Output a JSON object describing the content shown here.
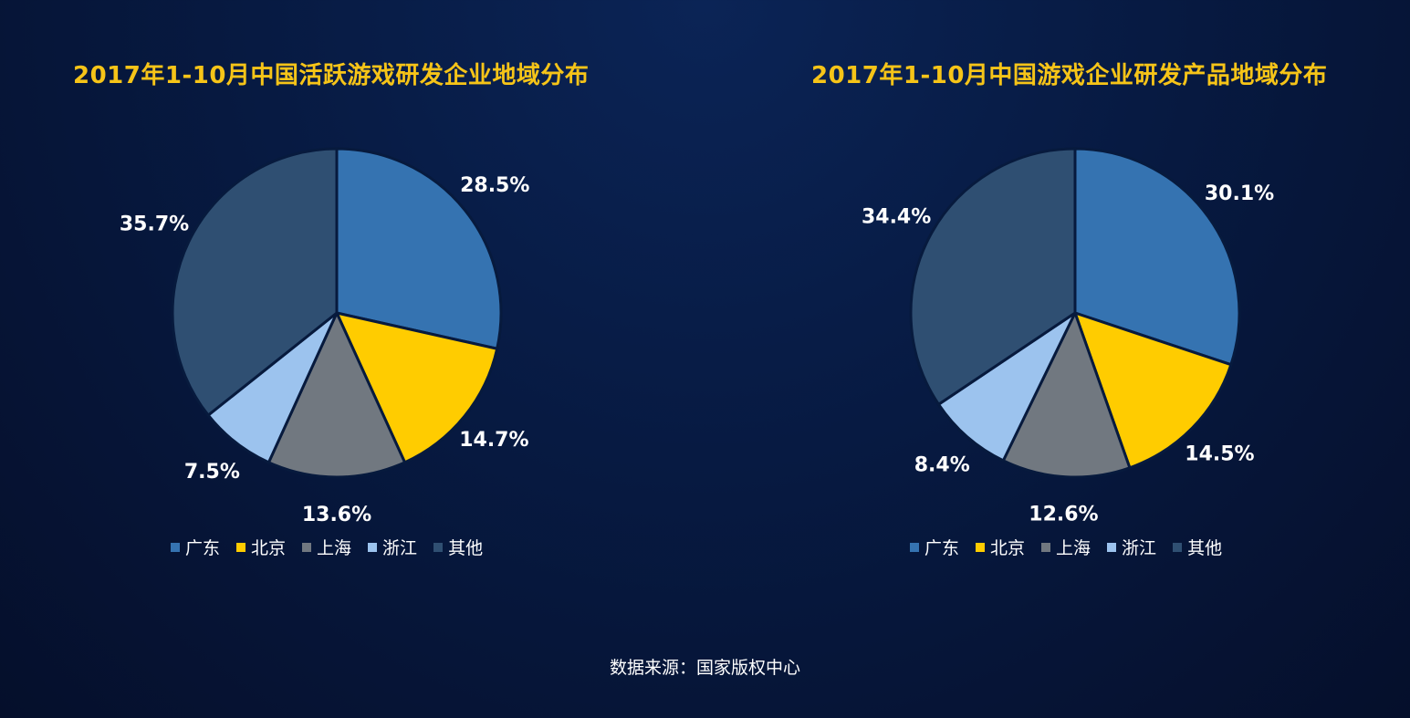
{
  "colors": {
    "广东": "#3573b1",
    "北京": "#ffcc00",
    "上海": "#717880",
    "浙江": "#9cc3ee",
    "其他": "#2f4f72",
    "title": "#f6c418",
    "stroke": "#071a3d"
  },
  "legend_labels": [
    "广东",
    "北京",
    "上海",
    "浙江",
    "其他"
  ],
  "source": "数据来源：国家版权中心",
  "chart_data": [
    {
      "type": "pie",
      "title": "2017年1-10月中国活跃游戏研发企业地域分布",
      "categories": [
        "广东",
        "北京",
        "上海",
        "浙江",
        "其他"
      ],
      "values": [
        28.5,
        14.7,
        13.6,
        7.5,
        35.7
      ],
      "labels": [
        "28.5%",
        "14.7%",
        "13.6%",
        "7.5%",
        "35.7%"
      ],
      "legend_position": "bottom"
    },
    {
      "type": "pie",
      "title": "2017年1-10月中国游戏企业研发产品地域分布",
      "categories": [
        "广东",
        "北京",
        "上海",
        "浙江",
        "其他"
      ],
      "values": [
        30.1,
        14.5,
        12.6,
        8.4,
        34.4
      ],
      "labels": [
        "30.1%",
        "14.5%",
        "12.6%",
        "8.4%",
        "34.4%"
      ],
      "legend_position": "bottom"
    }
  ]
}
